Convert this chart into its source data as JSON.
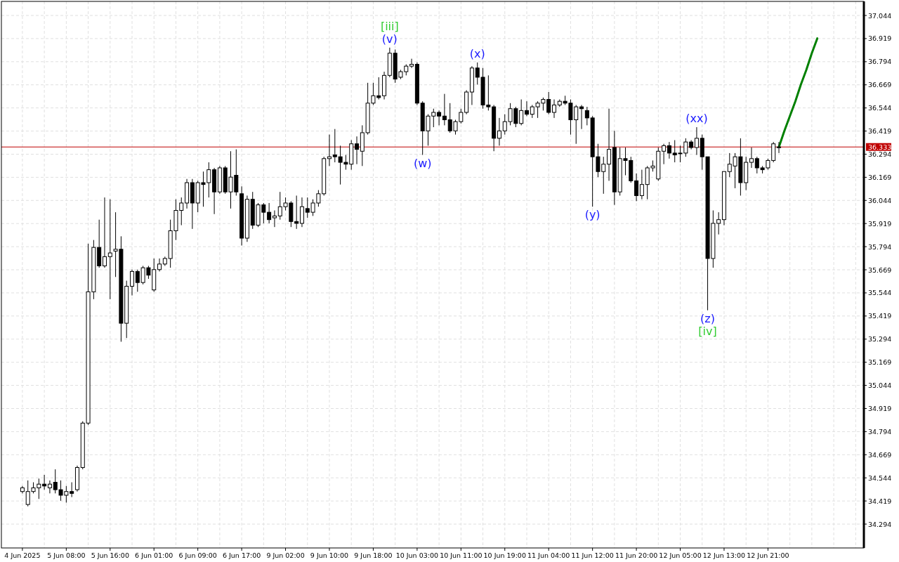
{
  "chart_data": {
    "type": "candlestick",
    "categories": [
      "4 Jun 2025",
      null,
      null,
      null,
      null,
      null,
      null,
      null,
      "5 Jun 08:00",
      null,
      null,
      null,
      null,
      null,
      null,
      null,
      "5 Jun 16:00",
      null,
      null,
      null,
      null,
      null,
      null,
      null,
      "6 Jun 01:00",
      null,
      null,
      null,
      null,
      null,
      null,
      null,
      "6 Jun 09:00",
      null,
      null,
      null,
      null,
      null,
      null,
      null,
      "6 Jun 17:00",
      null,
      null,
      null,
      null,
      null,
      null,
      null,
      "9 Jun 02:00",
      null,
      null,
      null,
      null,
      null,
      null,
      null,
      "9 Jun 10:00",
      null,
      null,
      null,
      null,
      null,
      null,
      null,
      "9 Jun 18:00",
      null,
      null,
      null,
      null,
      null,
      null,
      null,
      "10 Jun 03:00",
      null,
      null,
      null,
      null,
      null,
      null,
      null,
      "10 Jun 11:00",
      null,
      null,
      null,
      null,
      null,
      null,
      null,
      "10 Jun 19:00",
      null,
      null,
      null,
      null,
      null,
      null,
      null,
      "11 Jun 04:00",
      null,
      null,
      null,
      null,
      null,
      null,
      null,
      "11 Jun 12:00",
      null,
      null,
      null,
      null,
      null,
      null,
      null,
      "11 Jun 20:00",
      null,
      null,
      null,
      null,
      null,
      null,
      null,
      "12 Jun 05:00",
      null,
      null,
      null,
      null,
      null,
      null,
      null,
      "12 Jun 13:00",
      null,
      null,
      null,
      null,
      null,
      null,
      null,
      "12 Jun 21:00",
      null,
      null,
      null,
      null,
      null,
      null,
      null,
      null,
      null,
      null,
      null,
      null,
      null,
      null,
      null,
      null,
      null
    ],
    "ohlc": [
      [
        34.47,
        34.5,
        34.46,
        34.49
      ],
      [
        34.4,
        34.53,
        34.39,
        34.47
      ],
      [
        34.47,
        34.52,
        34.46,
        34.49
      ],
      [
        34.49,
        34.54,
        34.43,
        34.51
      ],
      [
        34.51,
        34.56,
        34.48,
        34.5
      ],
      [
        34.49,
        34.53,
        34.46,
        34.51
      ],
      [
        34.52,
        34.59,
        34.46,
        34.48
      ],
      [
        34.48,
        34.53,
        34.42,
        34.45
      ],
      [
        34.45,
        34.5,
        34.41,
        34.47
      ],
      [
        34.47,
        34.52,
        34.44,
        34.46
      ],
      [
        34.48,
        34.61,
        34.47,
        34.6
      ],
      [
        34.6,
        34.85,
        34.59,
        34.84
      ],
      [
        34.84,
        35.81,
        34.83,
        35.55
      ],
      [
        35.55,
        35.83,
        35.51,
        35.79
      ],
      [
        35.79,
        35.94,
        35.68,
        35.69
      ],
      [
        35.69,
        36.06,
        35.68,
        35.74
      ],
      [
        35.74,
        36.05,
        35.51,
        35.76
      ],
      [
        35.77,
        35.98,
        35.63,
        35.78
      ],
      [
        35.78,
        35.85,
        35.28,
        35.38
      ],
      [
        35.38,
        35.61,
        35.3,
        35.58
      ],
      [
        35.58,
        35.67,
        35.53,
        35.66
      ],
      [
        35.66,
        35.67,
        35.55,
        35.6
      ],
      [
        35.6,
        35.69,
        35.59,
        35.68
      ],
      [
        35.68,
        35.69,
        35.62,
        35.64
      ],
      [
        35.56,
        35.73,
        35.55,
        35.67
      ],
      [
        35.67,
        35.73,
        35.66,
        35.7
      ],
      [
        35.7,
        35.74,
        35.69,
        35.73
      ],
      [
        35.73,
        35.94,
        35.68,
        35.88
      ],
      [
        35.88,
        36.05,
        35.83,
        35.99
      ],
      [
        35.99,
        36.06,
        35.91,
        36.03
      ],
      [
        36.03,
        36.16,
        36,
        36.14
      ],
      [
        36.14,
        36.16,
        35.89,
        36.03
      ],
      [
        36.03,
        36.15,
        35.98,
        36.14
      ],
      [
        36.14,
        36.2,
        36.01,
        36.13
      ],
      [
        36.14,
        36.25,
        36.06,
        36.21
      ],
      [
        36.21,
        36.22,
        35.97,
        36.09
      ],
      [
        36.09,
        36.23,
        36.08,
        36.22
      ],
      [
        36.22,
        36.23,
        36.08,
        36.09
      ],
      [
        36.09,
        36.31,
        36,
        36.17
      ],
      [
        36.18,
        36.32,
        36.07,
        36.09
      ],
      [
        36.08,
        36.12,
        35.8,
        35.84
      ],
      [
        35.84,
        36.07,
        35.82,
        36.05
      ],
      [
        36.05,
        36.09,
        35.89,
        35.91
      ],
      [
        35.91,
        36.03,
        35.9,
        36.02
      ],
      [
        36.02,
        36.03,
        35.92,
        35.98
      ],
      [
        35.98,
        36.03,
        35.92,
        35.94
      ],
      [
        35.95,
        35.99,
        35.9,
        35.96
      ],
      [
        35.96,
        36.09,
        35.94,
        36.01
      ],
      [
        36.01,
        36.06,
        35.99,
        36.03
      ],
      [
        36.03,
        36.04,
        35.9,
        35.93
      ],
      [
        35.93,
        36.07,
        35.89,
        35.92
      ],
      [
        35.92,
        36.06,
        35.9,
        36.01
      ],
      [
        36,
        36.06,
        35.95,
        35.98
      ],
      [
        35.98,
        36.05,
        35.96,
        36.03
      ],
      [
        36.03,
        36.1,
        36.01,
        36.08
      ],
      [
        36.08,
        36.28,
        36.07,
        36.27
      ],
      [
        36.27,
        36.4,
        36.23,
        36.28
      ],
      [
        36.29,
        36.43,
        36.25,
        36.28
      ],
      [
        36.28,
        36.34,
        36.13,
        36.25
      ],
      [
        36.25,
        36.29,
        36.21,
        36.24
      ],
      [
        36.24,
        36.37,
        36.21,
        36.35
      ],
      [
        36.35,
        36.39,
        36.24,
        36.32
      ],
      [
        36.31,
        36.45,
        36.23,
        36.41
      ],
      [
        36.41,
        36.68,
        36.4,
        36.57
      ],
      [
        36.57,
        36.68,
        36.56,
        36.61
      ],
      [
        36.61,
        36.71,
        36.59,
        36.6
      ],
      [
        36.61,
        36.74,
        36.59,
        36.72
      ],
      [
        36.72,
        36.87,
        36.71,
        36.84
      ],
      [
        36.84,
        36.86,
        36.68,
        36.7
      ],
      [
        36.71,
        36.75,
        36.7,
        36.74
      ],
      [
        36.74,
        36.78,
        36.72,
        36.77
      ],
      [
        36.77,
        36.81,
        36.76,
        36.78
      ],
      [
        36.78,
        36.79,
        36.56,
        36.57
      ],
      [
        36.57,
        36.58,
        36.29,
        36.42
      ],
      [
        36.42,
        36.51,
        36.34,
        36.5
      ],
      [
        36.5,
        36.54,
        36.44,
        36.52
      ],
      [
        36.52,
        36.53,
        36.45,
        36.5
      ],
      [
        36.5,
        36.62,
        36.45,
        36.48
      ],
      [
        36.48,
        36.57,
        36.41,
        36.42
      ],
      [
        36.42,
        36.48,
        36.4,
        36.47
      ],
      [
        36.47,
        36.54,
        36.46,
        36.52
      ],
      [
        36.52,
        36.64,
        36.51,
        36.63
      ],
      [
        36.63,
        36.77,
        36.56,
        36.76
      ],
      [
        36.76,
        36.79,
        36.67,
        36.71
      ],
      [
        36.71,
        36.76,
        36.54,
        36.56
      ],
      [
        36.56,
        36.72,
        36.53,
        36.55
      ],
      [
        36.55,
        36.56,
        36.31,
        36.38
      ],
      [
        36.38,
        36.49,
        36.34,
        36.42
      ],
      [
        36.42,
        36.51,
        36.4,
        36.47
      ],
      [
        36.47,
        36.57,
        36.45,
        36.54
      ],
      [
        36.54,
        36.55,
        36.44,
        36.46
      ],
      [
        36.46,
        36.59,
        36.45,
        36.53
      ],
      [
        36.53,
        36.58,
        36.5,
        36.51
      ],
      [
        36.51,
        36.56,
        36.49,
        36.55
      ],
      [
        36.55,
        36.58,
        36.49,
        36.57
      ],
      [
        36.57,
        36.6,
        36.53,
        36.59
      ],
      [
        36.59,
        36.63,
        36.51,
        36.52
      ],
      [
        36.52,
        36.59,
        36.49,
        36.56
      ],
      [
        36.56,
        36.59,
        36.55,
        36.58
      ],
      [
        36.58,
        36.61,
        36.56,
        36.57
      ],
      [
        36.57,
        36.59,
        36.4,
        36.48
      ],
      [
        36.48,
        36.56,
        36.35,
        36.55
      ],
      [
        36.55,
        36.56,
        36.43,
        36.54
      ],
      [
        36.53,
        36.55,
        36.45,
        36.49
      ],
      [
        36.49,
        36.5,
        36.01,
        36.28
      ],
      [
        36.28,
        36.35,
        36.17,
        36.2
      ],
      [
        36.2,
        36.28,
        36.08,
        36.24
      ],
      [
        36.24,
        36.54,
        36.15,
        36.32
      ],
      [
        36.33,
        36.42,
        36.02,
        36.09
      ],
      [
        36.09,
        36.33,
        36.07,
        36.27
      ],
      [
        36.27,
        36.33,
        36.18,
        36.26
      ],
      [
        36.26,
        36.28,
        36.14,
        36.15
      ],
      [
        36.15,
        36.19,
        36.04,
        36.07
      ],
      [
        36.07,
        36.21,
        36.05,
        36.13
      ],
      [
        36.13,
        36.23,
        36.05,
        36.22
      ],
      [
        36.22,
        36.26,
        36.2,
        36.23
      ],
      [
        36.16,
        36.33,
        36.15,
        36.31
      ],
      [
        36.31,
        36.35,
        36.24,
        36.34
      ],
      [
        36.34,
        36.36,
        36.27,
        36.3
      ],
      [
        36.3,
        36.37,
        36.25,
        36.29
      ],
      [
        36.3,
        36.34,
        36.25,
        36.3
      ],
      [
        36.3,
        36.38,
        36.28,
        36.36
      ],
      [
        36.36,
        36.37,
        36.32,
        36.33
      ],
      [
        36.33,
        36.44,
        36.29,
        36.38
      ],
      [
        36.38,
        36.4,
        36.21,
        36.28
      ],
      [
        36.28,
        36.28,
        35.45,
        35.73
      ],
      [
        35.73,
        35.99,
        35.68,
        35.92
      ],
      [
        35.92,
        35.98,
        35.86,
        35.94
      ],
      [
        35.94,
        36.2,
        35.91,
        36.2
      ],
      [
        36.2,
        36.3,
        36.17,
        36.24
      ],
      [
        36.23,
        36.3,
        36.11,
        36.28
      ],
      [
        36.28,
        36.38,
        36.07,
        36.14
      ],
      [
        36.14,
        36.28,
        36.1,
        36.25
      ],
      [
        36.25,
        36.33,
        36.22,
        36.27
      ],
      [
        36.27,
        36.28,
        36.19,
        36.22
      ],
      [
        36.22,
        36.23,
        36.19,
        36.21
      ],
      [
        36.22,
        36.27,
        36.21,
        36.26
      ],
      [
        36.26,
        36.36,
        36.25,
        36.35
      ],
      [
        36.33,
        36.36,
        36.3,
        36.333
      ],
      null,
      null,
      null,
      null,
      null,
      null,
      null,
      null,
      null,
      null,
      null,
      null,
      null,
      null,
      null
    ],
    "series": [
      {
        "type": "line",
        "color": "#008000",
        "values": [
          null,
          null,
          null,
          null,
          null,
          null,
          null,
          null,
          null,
          null,
          null,
          null,
          null,
          null,
          null,
          null,
          null,
          null,
          null,
          null,
          null,
          null,
          null,
          null,
          null,
          null,
          null,
          null,
          null,
          null,
          null,
          null,
          null,
          null,
          null,
          null,
          null,
          null,
          null,
          null,
          null,
          null,
          null,
          null,
          null,
          null,
          null,
          null,
          null,
          null,
          null,
          null,
          null,
          null,
          null,
          null,
          null,
          null,
          null,
          null,
          null,
          null,
          null,
          null,
          null,
          null,
          null,
          null,
          null,
          null,
          null,
          null,
          null,
          null,
          null,
          null,
          null,
          null,
          null,
          null,
          null,
          null,
          null,
          null,
          null,
          null,
          null,
          null,
          null,
          null,
          null,
          null,
          null,
          null,
          null,
          null,
          null,
          null,
          null,
          null,
          null,
          null,
          null,
          null,
          null,
          null,
          null,
          null,
          null,
          null,
          null,
          null,
          null,
          null,
          null,
          null,
          null,
          null,
          null,
          null,
          null,
          null,
          null,
          null,
          null,
          null,
          null,
          null,
          null,
          null,
          null,
          null,
          null,
          null,
          null,
          null,
          null,
          null,
          36.333,
          36.42,
          36.5,
          36.58,
          36.67,
          36.75,
          36.84,
          36.92,
          null,
          null,
          null,
          null,
          null,
          null,
          null,
          null
        ]
      }
    ],
    "ylim": [
      34.165,
      37.12
    ],
    "yticks": [
      37.044,
      36.919,
      36.794,
      36.669,
      36.544,
      36.419,
      36.294,
      36.169,
      36.044,
      35.919,
      35.794,
      35.669,
      35.544,
      35.419,
      35.294,
      35.169,
      35.044,
      34.919,
      34.794,
      34.669,
      34.544,
      34.419,
      34.294
    ],
    "grid": true,
    "ref_lines": [
      {
        "axis": "y",
        "value": 36.333,
        "label": "36.333",
        "color": "#c00000"
      }
    ],
    "annotations": [
      {
        "text": "(v)",
        "y": 36.87
      },
      {
        "text": "[iii]",
        "y": 36.87
      },
      {
        "text": "(w)",
        "y": 36.29
      },
      {
        "text": "(x)",
        "y": 36.79
      },
      {
        "text": "(y)",
        "y": 36.01
      },
      {
        "text": "(xx)",
        "y": 36.44
      },
      {
        "text": "(z)",
        "y": 35.45
      },
      {
        "text": "[iv]",
        "y": 35.45
      }
    ]
  }
}
